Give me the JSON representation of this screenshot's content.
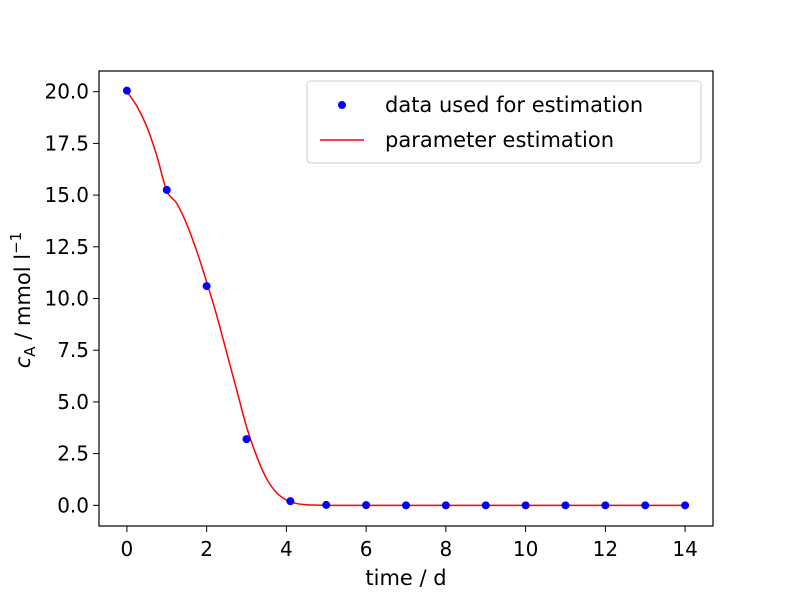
{
  "chart_data": {
    "type": "scatter",
    "xlabel": "time / d",
    "ylabel": {
      "symbol": "c",
      "subscript": "A",
      "unit": " / mmol l",
      "superscript": "−1"
    },
    "xlim": [
      -0.7,
      14.7
    ],
    "ylim": [
      -1.0,
      21.0
    ],
    "xticks": [
      0,
      2,
      4,
      6,
      8,
      10,
      12,
      14
    ],
    "xtick_labels": [
      "0",
      "2",
      "4",
      "6",
      "8",
      "10",
      "12",
      "14"
    ],
    "yticks": [
      0,
      2.5,
      5,
      7.5,
      10,
      12.5,
      15,
      17.5,
      20
    ],
    "ytick_labels": [
      "0.0",
      "2.5",
      "5.0",
      "7.5",
      "10.0",
      "12.5",
      "15.0",
      "17.5",
      "20.0"
    ],
    "grid": false,
    "legend_position": "top-right",
    "series": [
      {
        "name": "data used for estimation",
        "kind": "scatter",
        "color": "#0000ff",
        "x": [
          0,
          1,
          2,
          3,
          4.1,
          5,
          6,
          7,
          8,
          9,
          10,
          11,
          12,
          13,
          14
        ],
        "y": [
          20.05,
          15.25,
          10.6,
          3.2,
          0.2,
          0.02,
          0.01,
          0.0,
          0.0,
          0.0,
          0.0,
          0.0,
          0.0,
          0.0,
          0.0
        ]
      },
      {
        "name": "parameter estimation",
        "kind": "line",
        "color": "#ff0000",
        "x": [
          0,
          0.25,
          0.5,
          0.75,
          1,
          1.25,
          1.5,
          1.75,
          2,
          2.25,
          2.5,
          2.75,
          3,
          3.25,
          3.5,
          3.75,
          4,
          4.25,
          4.5,
          4.75,
          5,
          5.5,
          6,
          7,
          8,
          9,
          10,
          11,
          12,
          13,
          14
        ],
        "y": [
          20.0,
          19.3,
          18.3,
          16.9,
          15.2,
          14.6,
          13.6,
          12.3,
          10.8,
          9.2,
          7.4,
          5.6,
          3.8,
          2.4,
          1.3,
          0.62,
          0.26,
          0.09,
          0.03,
          0.01,
          0.0,
          0.0,
          0.0,
          0.0,
          0.0,
          0.0,
          0.0,
          0.0,
          0.0,
          0.0,
          0.0
        ]
      }
    ]
  }
}
